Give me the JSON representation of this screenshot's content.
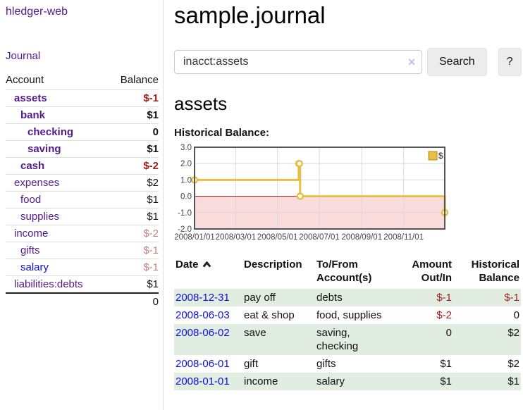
{
  "sidebar": {
    "brand": "hledger-web",
    "nav": {
      "journal": "Journal"
    },
    "table": {
      "account_header": "Account",
      "balance_header": "Balance",
      "rows": [
        {
          "name": "assets",
          "balance": "$-1",
          "depth": 1,
          "bold": true,
          "negative": "strong"
        },
        {
          "name": "bank",
          "balance": "$1",
          "depth": 2,
          "bold": true,
          "negative": null
        },
        {
          "name": "checking",
          "balance": "0",
          "depth": 3,
          "bold": true,
          "negative": null
        },
        {
          "name": "saving",
          "balance": "$1",
          "depth": 3,
          "bold": true,
          "negative": null
        },
        {
          "name": "cash",
          "balance": "$-2",
          "depth": 2,
          "bold": true,
          "negative": "strong"
        },
        {
          "name": "expenses",
          "balance": "$2",
          "depth": 1,
          "bold": false,
          "negative": null
        },
        {
          "name": "food",
          "balance": "$1",
          "depth": 2,
          "bold": false,
          "negative": null
        },
        {
          "name": "supplies",
          "balance": "$1",
          "depth": 2,
          "bold": false,
          "negative": null
        },
        {
          "name": "income",
          "balance": "$-2",
          "depth": 1,
          "bold": false,
          "negative": "soft"
        },
        {
          "name": "gifts",
          "balance": "$-1",
          "depth": 2,
          "bold": false,
          "negative": "soft"
        },
        {
          "name": "salary",
          "balance": "$-1",
          "depth": 2,
          "bold": false,
          "negative": "soft",
          "unvisited": true
        },
        {
          "name": "liabilities:debts",
          "balance": "$1",
          "depth": 1,
          "bold": false,
          "negative": null
        }
      ],
      "total": "0"
    }
  },
  "main": {
    "title": "sample.journal",
    "search": {
      "value": "inacct:assets",
      "clear_icon": "✕",
      "search_button": "Search",
      "help_button": "?"
    },
    "account_title": "assets",
    "chart_heading": "Historical Balance:"
  },
  "chart_data": {
    "type": "line",
    "step": true,
    "title": "Historical Balance",
    "legend_position": "top-right",
    "grid": true,
    "x": [
      "2008-01-01",
      "2008-06-01",
      "2008-06-02",
      "2008-06-03",
      "2008-12-31"
    ],
    "series": [
      {
        "name": "$",
        "values": [
          1,
          2,
          2,
          0,
          -1
        ]
      }
    ],
    "ylim": [
      -2,
      3
    ],
    "yticks": [
      3,
      2,
      1,
      0,
      -1,
      -2
    ],
    "xticks": [
      "2008/01/01",
      "2008/03/01",
      "2008/05/01",
      "2008/07/01",
      "2008/09/01",
      "2008/11/01"
    ],
    "colors": {
      "line": "#e6bf43",
      "line_border": "#b08a20",
      "marker_fill": "#ffffff",
      "negative_fill": "#fbdcdc",
      "zero_line": "#8b0f0f",
      "grid": "#d9d9d9",
      "border": "#545454"
    }
  },
  "register": {
    "headers": [
      "Date",
      "Description",
      "To/From Account(s)",
      "Amount Out/In",
      "Historical Balance"
    ],
    "rows": [
      {
        "date": "2008-12-31",
        "description": "pay off",
        "accounts": "debts",
        "amount": "$-1",
        "balance": "$-1",
        "amount_negative": true,
        "balance_negative": true
      },
      {
        "date": "2008-06-03",
        "description": "eat & shop",
        "accounts": "food, supplies",
        "amount": "$-2",
        "balance": "0",
        "amount_negative": true,
        "balance_negative": false
      },
      {
        "date": "2008-06-02",
        "description": "save",
        "accounts": "saving,\nchecking",
        "amount": "0",
        "balance": "$2",
        "amount_negative": false,
        "balance_negative": false
      },
      {
        "date": "2008-06-01",
        "description": "gift",
        "accounts": "gifts",
        "amount": "$1",
        "balance": "$2",
        "amount_negative": false,
        "balance_negative": false
      },
      {
        "date": "2008-01-01",
        "description": "income",
        "accounts": "salary",
        "amount": "$1",
        "balance": "$1",
        "amount_negative": false,
        "balance_negative": false
      }
    ]
  }
}
